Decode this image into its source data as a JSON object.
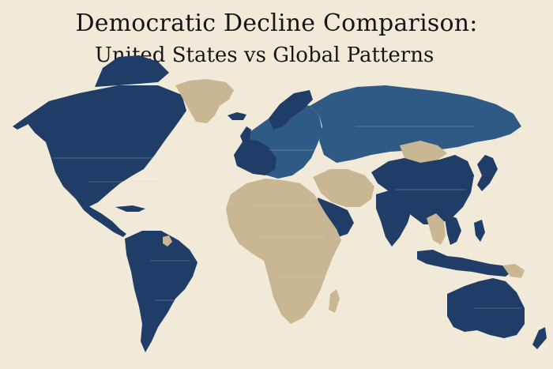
{
  "header": {
    "title": "Democratic Decline Comparison:",
    "subtitle": "United States vs Global Patterns"
  },
  "colors": {
    "background": "#f2ead9",
    "dark_navy": "#1f3d66",
    "medium_blue": "#2f5a85",
    "tan": "#c9b793",
    "text": "#161616"
  }
}
